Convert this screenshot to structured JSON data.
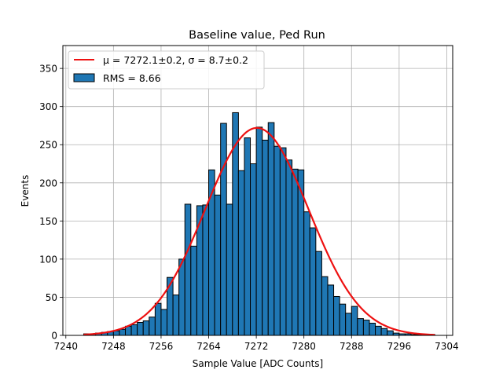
{
  "chart_data": {
    "type": "bar",
    "title": "Baseline value, Ped Run",
    "xlabel": "Sample Value [ADC Counts]",
    "ylabel": "Events",
    "xlim": [
      7239.5,
      7305
    ],
    "ylim": [
      0,
      380
    ],
    "grid": true,
    "x_ticks": [
      7240,
      7248,
      7256,
      7264,
      7272,
      7280,
      7288,
      7296,
      7304
    ],
    "y_ticks": [
      0,
      50,
      100,
      150,
      200,
      250,
      300,
      350
    ],
    "bin_width": 1,
    "bin_left_edges": [
      7243,
      7244,
      7245,
      7246,
      7247,
      7248,
      7249,
      7250,
      7251,
      7252,
      7253,
      7254,
      7255,
      7256,
      7257,
      7258,
      7259,
      7260,
      7261,
      7262,
      7263,
      7264,
      7265,
      7266,
      7267,
      7268,
      7269,
      7270,
      7271,
      7272,
      7273,
      7274,
      7275,
      7276,
      7277,
      7278,
      7279,
      7280,
      7281,
      7282,
      7283,
      7284,
      7285,
      7286,
      7287,
      7288,
      7289,
      7290,
      7291,
      7292,
      7293,
      7294,
      7295,
      7296,
      7297,
      7298,
      7299,
      7300,
      7301
    ],
    "counts": [
      2,
      2,
      3,
      4,
      5,
      6,
      8,
      12,
      14,
      17,
      19,
      24,
      42,
      34,
      76,
      53,
      100,
      172,
      117,
      170,
      171,
      217,
      184,
      278,
      172,
      292,
      216,
      259,
      225,
      273,
      256,
      279,
      248,
      246,
      230,
      218,
      217,
      162,
      141,
      110,
      77,
      66,
      51,
      41,
      29,
      38,
      22,
      20,
      16,
      12,
      9,
      6,
      3,
      2,
      2,
      1,
      1,
      1,
      1
    ],
    "fit": {
      "type": "gaussian",
      "mu": 7272.1,
      "sigma": 8.7,
      "amplitude": 272
    },
    "legend": {
      "placement": "top-left",
      "entries": [
        {
          "label": "μ = 7272.1±0.2, σ = 8.7±0.2",
          "kind": "line",
          "color": "#ee1111"
        },
        {
          "label": "RMS = 8.66",
          "kind": "patch",
          "color": "#1f77b4"
        }
      ]
    },
    "colors": {
      "bar": "#1f77b4",
      "bar_edge": "#000000",
      "fit": "#ee1111",
      "grid": "#b0b0b0"
    }
  }
}
